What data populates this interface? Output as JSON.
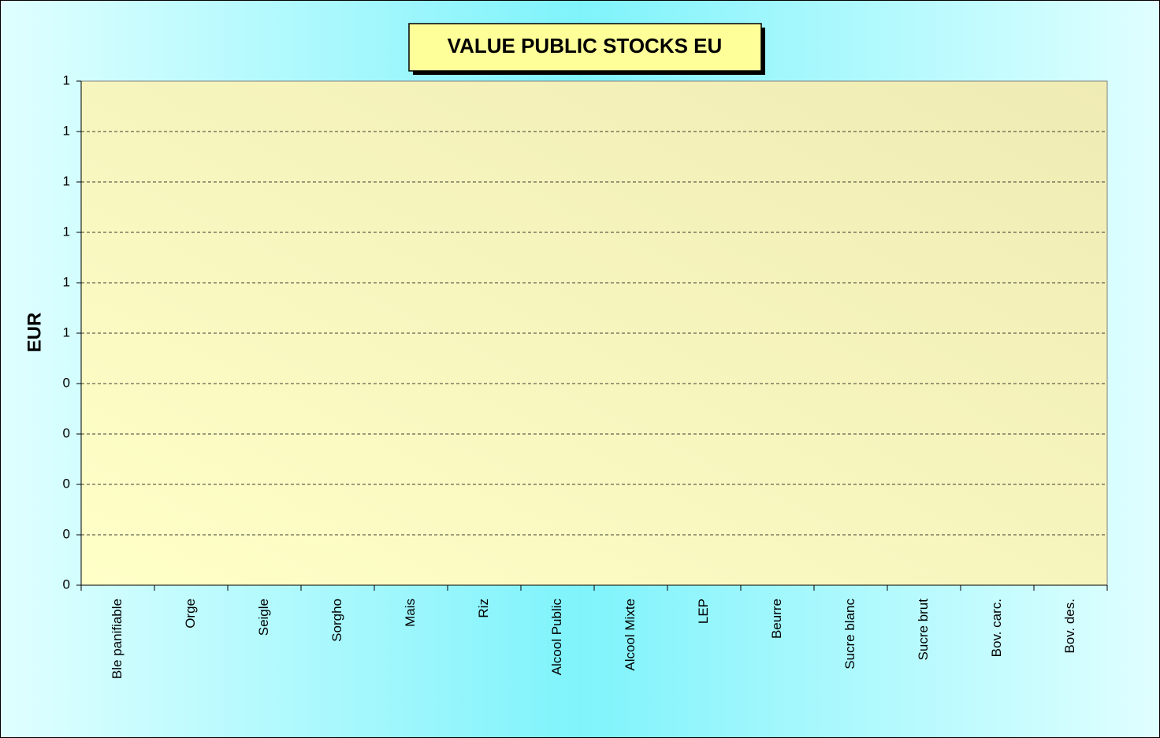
{
  "chart_data": {
    "type": "bar",
    "title": "VALUE PUBLIC STOCKS EU",
    "y_label": "EUR",
    "categories": [
      "Ble panifiable",
      "Orge",
      "Seigle",
      "Sorgho",
      "Mais",
      "Riz",
      "Alcool Public",
      "Alcool Mixte",
      "LEP",
      "Beurre",
      "Sucre blanc",
      "Sucre brut",
      "Bov. carc.",
      "Bov. des."
    ],
    "values": [
      0,
      0,
      0,
      0,
      0,
      0,
      0,
      0,
      0,
      0,
      0,
      0,
      0,
      0
    ],
    "color": "#9999ff",
    "ylim": [
      0,
      1
    ],
    "yticks": [
      0,
      {
        "value": 0.1,
        "label": "0"
      },
      {
        "value": 0.2,
        "label": "0"
      },
      {
        "value": 0.3,
        "label": "0"
      },
      {
        "value": 0.4,
        "label": "0"
      },
      {
        "value": 0.5,
        "label": "1"
      },
      {
        "value": 0.6,
        "label": "1"
      },
      {
        "value": 0.7,
        "label": "1"
      },
      {
        "value": 0.8,
        "label": "1"
      },
      {
        "value": 0.9,
        "label": "1"
      },
      1
    ],
    "grid": true
  }
}
